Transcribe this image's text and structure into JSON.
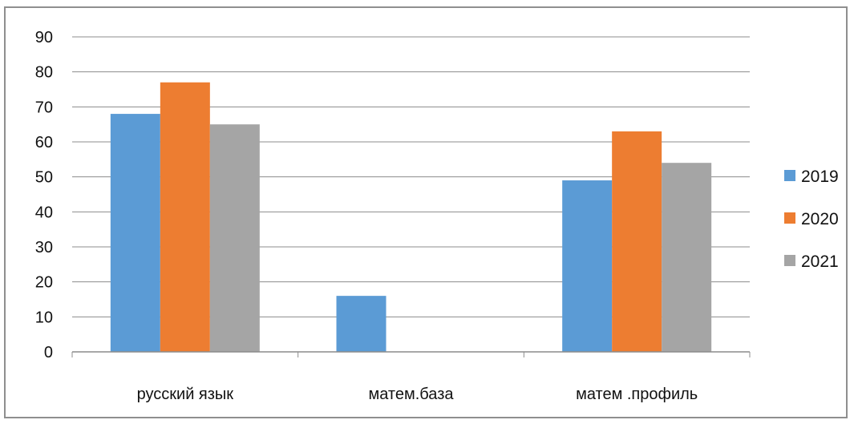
{
  "chart_data": {
    "type": "bar",
    "title": "",
    "xlabel": "",
    "ylabel": "",
    "categories": [
      "русский язык",
      "матем.база",
      "матем .профиль"
    ],
    "series": [
      {
        "name": "2019",
        "values": [
          68,
          16,
          49
        ],
        "color": "#5b9bd5"
      },
      {
        "name": "2020",
        "values": [
          77,
          0,
          63
        ],
        "color": "#ed7d31"
      },
      {
        "name": "2021",
        "values": [
          65,
          0,
          54
        ],
        "color": "#a5a5a5"
      }
    ],
    "ylim": [
      0,
      90
    ],
    "yticks": [
      "0",
      "10",
      "20",
      "30",
      "40",
      "50",
      "60",
      "70",
      "80",
      "90"
    ],
    "grid": true,
    "legend": "right"
  }
}
